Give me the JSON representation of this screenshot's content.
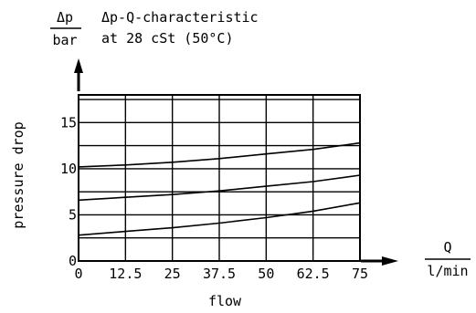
{
  "chart_data": {
    "type": "line",
    "title": "Δp-Q-characteristic",
    "subtitle": "at 28 cSt (50°C)",
    "ylabel": "pressure drop",
    "xlabel": "flow",
    "y_unit": {
      "numerator": "Δp",
      "denominator": "bar"
    },
    "x_unit": {
      "numerator": "Q",
      "denominator": "l/min"
    },
    "xlim": [
      0,
      75
    ],
    "ylim": [
      0,
      18
    ],
    "x_ticks": [
      0,
      12.5,
      25,
      37.5,
      50,
      62.5,
      75
    ],
    "x_tick_labels": [
      "0",
      "12.5",
      "25",
      "37.5",
      "50",
      "62.5",
      "75"
    ],
    "y_ticks": [
      0,
      5,
      10,
      15
    ],
    "y_tick_labels": [
      "0",
      "5",
      "10",
      "15"
    ],
    "grid": true,
    "series": [
      {
        "x": [
          0,
          12.5,
          25,
          37.5,
          50,
          62.5,
          75
        ],
        "y": [
          2.8,
          3.2,
          3.6,
          4.1,
          4.7,
          5.4,
          6.3
        ]
      },
      {
        "x": [
          0,
          12.5,
          25,
          37.5,
          50,
          62.5,
          75
        ],
        "y": [
          6.6,
          6.9,
          7.2,
          7.6,
          8.1,
          8.6,
          9.3
        ]
      },
      {
        "x": [
          0,
          12.5,
          25,
          37.5,
          50,
          62.5,
          75
        ],
        "y": [
          10.2,
          10.4,
          10.7,
          11.1,
          11.6,
          12.1,
          12.8
        ]
      }
    ]
  }
}
